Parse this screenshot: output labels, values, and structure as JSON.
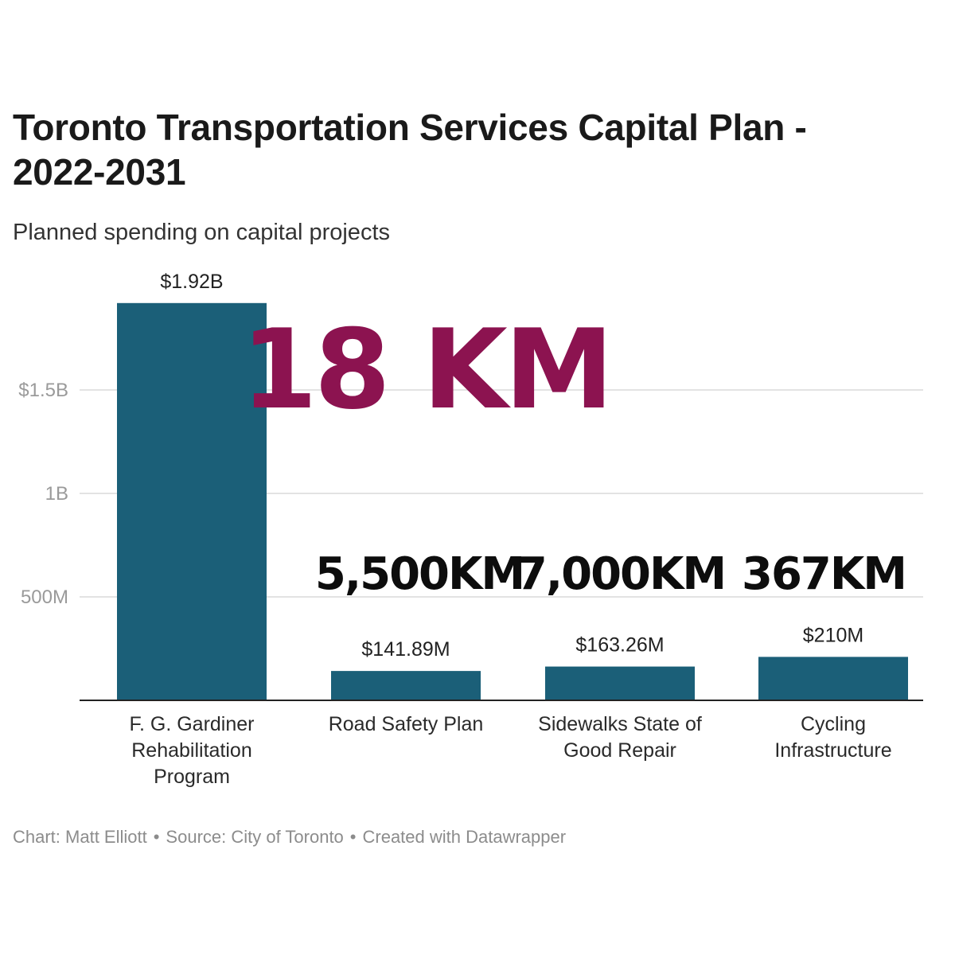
{
  "chart_data": {
    "type": "bar",
    "title": "Toronto Transportation Services Capital Plan - 2022-2031",
    "subtitle": "Planned spending on capital projects",
    "categories": [
      [
        "F. G. Gardiner",
        "Rehabilitation",
        "Program"
      ],
      [
        "Road Safety Plan"
      ],
      [
        "Sidewalks State of",
        "Good Repair"
      ],
      [
        "Cycling",
        "Infrastructure"
      ]
    ],
    "values": [
      1920000000,
      141890000,
      163260000,
      210000000
    ],
    "value_labels": [
      "$1.92B",
      "$141.89M",
      "$163.26M",
      "$210M"
    ],
    "overlay_labels": [
      "18 KM",
      "5,500KM",
      "7,000KM",
      "367KM"
    ],
    "yticks": [
      {
        "value": 500000000,
        "label": "500M"
      },
      {
        "value": 1000000000,
        "label": "1B"
      },
      {
        "value": 1500000000,
        "label": "$1.5B"
      }
    ],
    "ylim": [
      0,
      2000000000
    ],
    "grid": true,
    "bar_color": "#1b5f78",
    "overlay_highlight_color": "#8c1350",
    "overlay_color": "#0d0d0d"
  },
  "footer": {
    "chart_credit": "Chart: Matt Elliott",
    "source": "Source: City of Toronto",
    "created_with": "Created with Datawrapper",
    "separator": "•"
  }
}
